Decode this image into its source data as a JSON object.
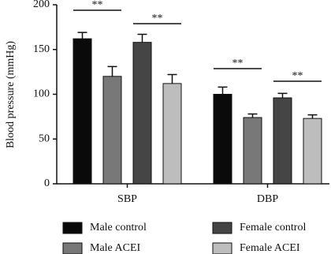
{
  "chart_data": {
    "type": "bar",
    "y_label": "Blood pressure (mmHg)",
    "categories": [
      "SBP",
      "DBP"
    ],
    "series": [
      {
        "name": "Male control",
        "color": "#0a0a0a",
        "values": [
          162,
          100
        ],
        "errors": [
          7,
          8
        ]
      },
      {
        "name": "Male ACEI",
        "color": "#787878",
        "values": [
          120,
          74
        ],
        "errors": [
          11,
          4
        ]
      },
      {
        "name": "Female control",
        "color": "#454545",
        "values": [
          158,
          96
        ],
        "errors": [
          9,
          5
        ]
      },
      {
        "name": "Female ACEI",
        "color": "#bdbdbd",
        "values": [
          112,
          73
        ],
        "errors": [
          10,
          4
        ]
      }
    ],
    "annotations": [
      "**",
      "**",
      "**",
      "**"
    ],
    "ylim": [
      0,
      200
    ],
    "yticks": [
      0,
      50,
      100,
      150,
      200
    ]
  }
}
